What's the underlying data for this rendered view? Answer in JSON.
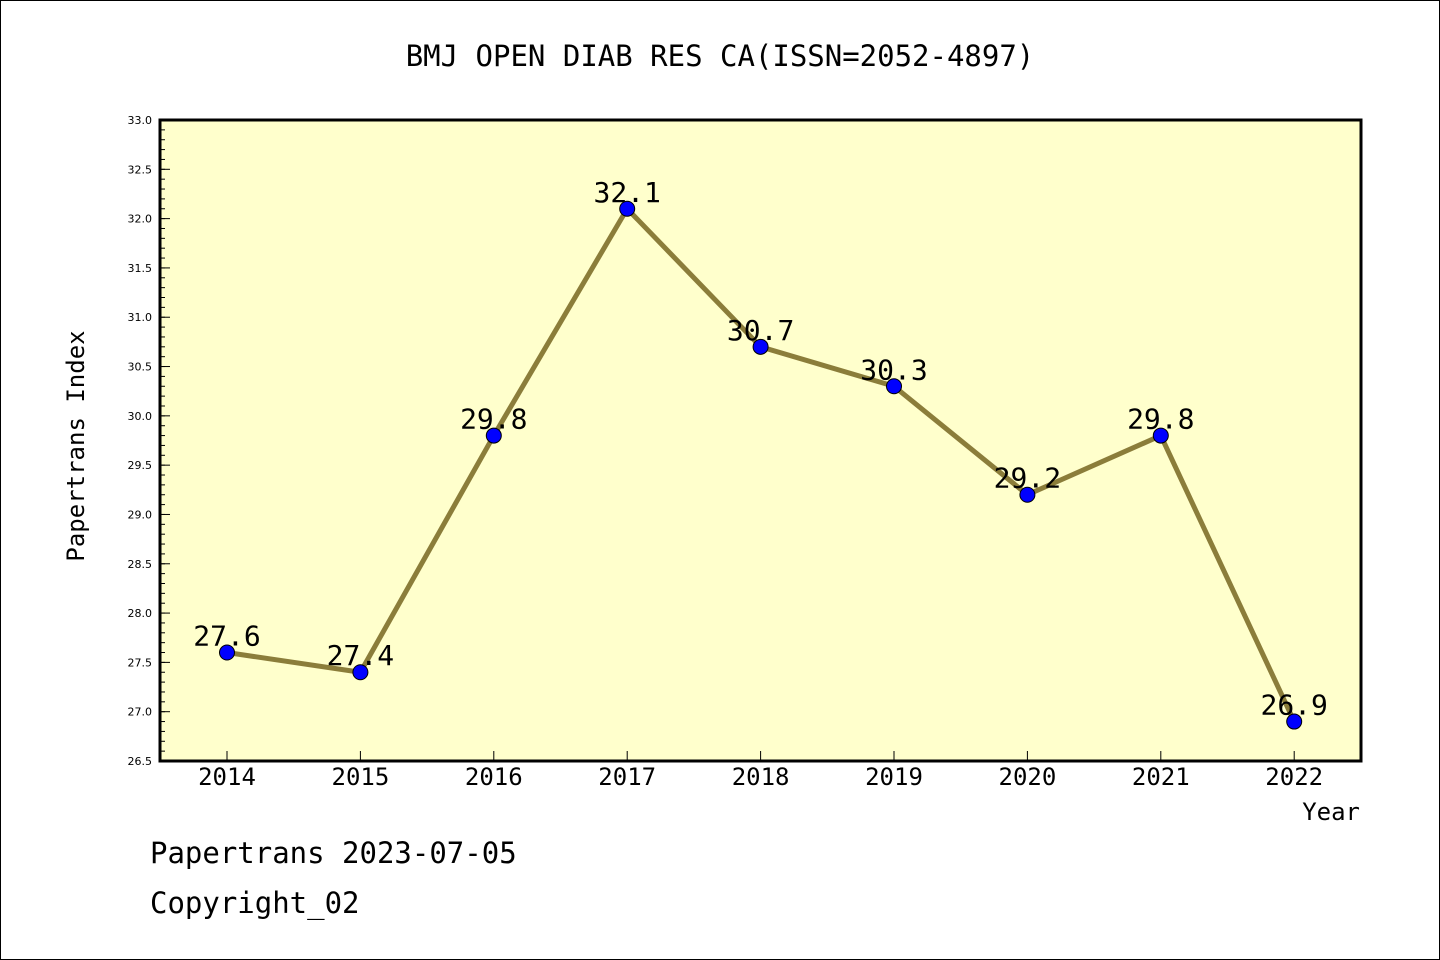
{
  "footer": {
    "line1": "Papertrans 2023-07-05",
    "line2": "Copyright_02"
  },
  "colors": {
    "plot_background": "#ffffcc",
    "line": "#8b7d3a",
    "marker": "#0000ff",
    "axis": "#000000"
  },
  "chart_data": {
    "type": "line",
    "title": "BMJ OPEN DIAB RES CA(ISSN=2052-4897)",
    "xlabel": "Year",
    "ylabel": "Papertrans Index",
    "categories": [
      "2014",
      "2015",
      "2016",
      "2017",
      "2018",
      "2019",
      "2020",
      "2021",
      "2022"
    ],
    "series": [
      {
        "values": [
          27.6,
          27.4,
          29.8,
          32.1,
          30.7,
          30.3,
          29.2,
          29.8,
          26.9
        ],
        "data_labels": [
          "27.6",
          "27.4",
          "29.8",
          "32.1",
          "30.7",
          "30.3",
          "29.2",
          "29.8",
          "26.9"
        ]
      }
    ],
    "ylim": [
      26.5,
      33.0
    ],
    "yticks": [
      "26.5",
      "27.0",
      "27.5",
      "28.0",
      "28.5",
      "29.0",
      "29.5",
      "30.0",
      "30.5",
      "31.0",
      "31.5",
      "32.0",
      "32.5",
      "33.0"
    ],
    "grid": false,
    "legend": "none"
  }
}
